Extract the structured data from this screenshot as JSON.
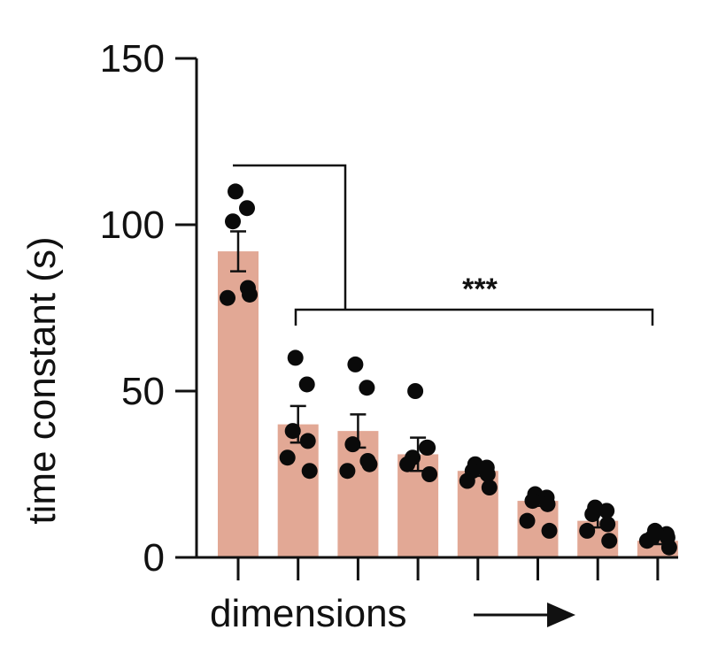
{
  "chart_data": {
    "type": "bar",
    "title": "",
    "xlabel": "dimensions",
    "ylabel": "time constant (s)",
    "ylim": [
      0,
      150
    ],
    "yticks": [
      0,
      50,
      100,
      150
    ],
    "categories": [
      "",
      "",
      "",
      "",
      "",
      "",
      "",
      ""
    ],
    "values": [
      92,
      40,
      38,
      31,
      26,
      17,
      11,
      5
    ],
    "error": [
      6,
      5.5,
      5,
      5,
      1.5,
      1.5,
      2,
      1
    ],
    "points": [
      [
        110,
        105,
        101,
        81,
        78,
        79
      ],
      [
        60,
        52,
        38,
        35,
        30,
        26
      ],
      [
        58,
        51,
        34,
        29,
        26,
        28
      ],
      [
        50,
        33,
        30,
        33,
        28,
        25
      ],
      [
        28,
        27,
        26,
        25,
        23,
        21
      ],
      [
        19,
        18,
        17,
        16,
        11,
        8
      ],
      [
        15,
        14,
        13,
        10,
        8,
        5
      ],
      [
        8,
        7,
        6,
        6,
        5,
        3
      ]
    ],
    "significance": "***",
    "grid": false,
    "legend": "none",
    "colors": {
      "bar": "#e2a895",
      "point": "#0a0a0a",
      "axis": "#111111"
    }
  }
}
